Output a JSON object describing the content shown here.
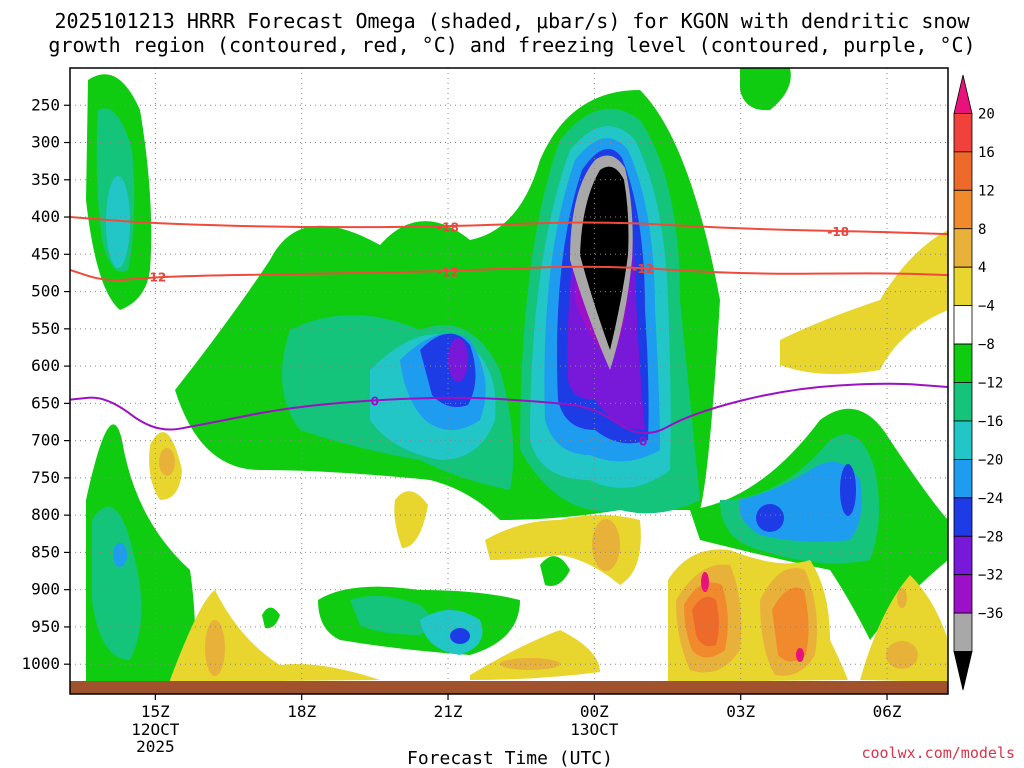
{
  "title_lines": [
    "2025101213 HRRR Forecast Omega (shaded, μbar/s) for KGON with dendritic snow",
    "growth region (contoured, red, °C) and freezing level (contoured, purple, °C)"
  ],
  "credit": "coolwx.com/models",
  "chart_data": {
    "type": "heatmap",
    "title": "2025101213 HRRR Forecast Omega (shaded, μbar/s) for KGON with dendritic snow growth region (contoured, red, °C) and freezing level (contoured, purple, °C)",
    "xlabel": "Forecast Time (UTC)",
    "ylabel": "",
    "x_range_hours": [
      13.25,
      31.25
    ],
    "y_range_hpa": [
      1040,
      200
    ],
    "x_ticks": [
      {
        "hour": 15,
        "label": "15Z",
        "sub": [
          "12OCT",
          "2025"
        ]
      },
      {
        "hour": 18,
        "label": "18Z",
        "sub": []
      },
      {
        "hour": 21,
        "label": "21Z",
        "sub": []
      },
      {
        "hour": 24,
        "label": "00Z",
        "sub": [
          "13OCT"
        ]
      },
      {
        "hour": 27,
        "label": "03Z",
        "sub": []
      },
      {
        "hour": 30,
        "label": "06Z",
        "sub": []
      }
    ],
    "y_ticks": [
      250,
      300,
      350,
      400,
      450,
      500,
      550,
      600,
      650,
      700,
      750,
      800,
      850,
      900,
      950,
      1000
    ],
    "colorbar": {
      "labels": [
        "20",
        "16",
        "12",
        "8",
        "4",
        "−4",
        "−8",
        "−12",
        "−16",
        "−20",
        "−24",
        "−28",
        "−32",
        "−36"
      ],
      "colors": [
        "#e8137a",
        "#f0413a",
        "#ee6a2a",
        "#f08a2c",
        "#e8b23a",
        "#e8d62e",
        "#ffffff",
        "#10cc10",
        "#14c47a",
        "#22c6c6",
        "#1e9cf0",
        "#1e3ce6",
        "#7818d8",
        "#9c10c8",
        "#a8a8a8",
        "#000000"
      ]
    },
    "series": [
      {
        "name": "-18",
        "color": "#ef4b3c",
        "points": [
          [
            13.25,
            400
          ],
          [
            15,
            409
          ],
          [
            18,
            414
          ],
          [
            21,
            413
          ],
          [
            24,
            405
          ],
          [
            27,
            416
          ],
          [
            30,
            420
          ],
          [
            31.25,
            423
          ]
        ]
      },
      {
        "name": "-12",
        "color": "#ef4b3c",
        "points": [
          [
            13.25,
            471
          ],
          [
            14,
            487
          ],
          [
            15,
            480
          ],
          [
            18,
            476
          ],
          [
            21,
            473
          ],
          [
            24,
            464
          ],
          [
            27,
            477
          ],
          [
            30,
            475
          ],
          [
            31.25,
            478
          ]
        ]
      },
      {
        "name": "0",
        "color": "#9a12c4",
        "points": [
          [
            13.25,
            645
          ],
          [
            14,
            640
          ],
          [
            15,
            690
          ],
          [
            16,
            678
          ],
          [
            18,
            652
          ],
          [
            21,
            640
          ],
          [
            23,
            648
          ],
          [
            24,
            655
          ],
          [
            25,
            700
          ],
          [
            26,
            663
          ],
          [
            28,
            630
          ],
          [
            30,
            622
          ],
          [
            31.25,
            628
          ]
        ]
      }
    ]
  }
}
